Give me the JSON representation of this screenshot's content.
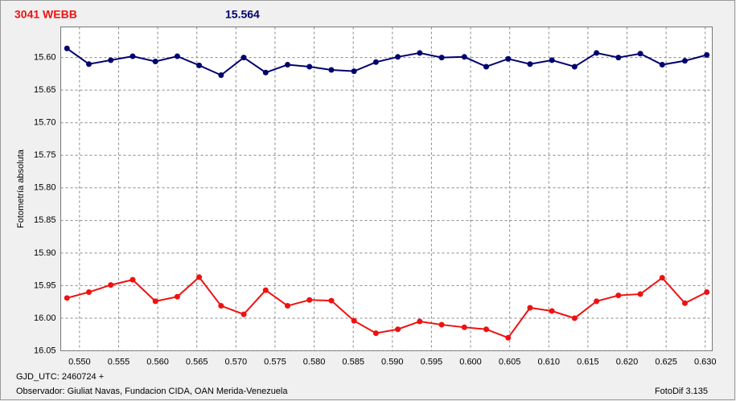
{
  "chart_data": {
    "type": "line",
    "title": "3041 WEBB",
    "subtitle": "15.564",
    "y_label": "Fotometría absoluta",
    "annotations": [
      "GJD_UTC: 2460724 +",
      "Observador: Giuliat Navas, Fundacion CIDA, OAN  Merida-Venezuela",
      "FotoDif 3.135"
    ],
    "x": [
      0.5484,
      0.5512,
      0.554,
      0.5568,
      0.5597,
      0.5625,
      0.5653,
      0.5681,
      0.571,
      0.5738,
      0.5766,
      0.5794,
      0.5822,
      0.5851,
      0.5879,
      0.5907,
      0.5935,
      0.5963,
      0.5992,
      0.602,
      0.6048,
      0.6076,
      0.6104,
      0.6133,
      0.6161,
      0.6189,
      0.6217,
      0.6245,
      0.6274,
      0.6302
    ],
    "series": [
      {
        "color": "#00006e",
        "values": [
          15.586,
          15.61,
          15.604,
          15.598,
          15.606,
          15.598,
          15.612,
          15.627,
          15.6,
          15.623,
          15.611,
          15.614,
          15.619,
          15.621,
          15.607,
          15.599,
          15.593,
          15.6,
          15.599,
          15.614,
          15.602,
          15.61,
          15.604,
          15.614,
          15.593,
          15.6,
          15.594,
          15.611,
          15.605,
          15.596
        ]
      },
      {
        "color": "#ee1111",
        "values": [
          15.969,
          15.96,
          15.949,
          15.941,
          15.974,
          15.967,
          15.937,
          15.981,
          15.994,
          15.957,
          15.981,
          15.972,
          15.973,
          16.004,
          16.023,
          16.017,
          16.005,
          16.01,
          16.014,
          16.017,
          16.03,
          15.984,
          15.989,
          16.0,
          15.974,
          15.965,
          15.963,
          15.938,
          15.977,
          15.96
        ]
      }
    ],
    "xlim": [
      0.5476,
      0.6309
    ],
    "ylim": [
      15.553,
      16.05
    ],
    "y_inverted": true,
    "grid": true,
    "xticks": [
      {
        "value": 0.55,
        "label": "0.550"
      },
      {
        "value": 0.555,
        "label": "0.555"
      },
      {
        "value": 0.56,
        "label": "0.560"
      },
      {
        "value": 0.565,
        "label": "0.565"
      },
      {
        "value": 0.57,
        "label": "0.570"
      },
      {
        "value": 0.575,
        "label": "0.575"
      },
      {
        "value": 0.58,
        "label": "0.580"
      },
      {
        "value": 0.585,
        "label": "0.585"
      },
      {
        "value": 0.59,
        "label": "0.590"
      },
      {
        "value": 0.595,
        "label": "0.595"
      },
      {
        "value": 0.6,
        "label": "0.600"
      },
      {
        "value": 0.605,
        "label": "0.605"
      },
      {
        "value": 0.61,
        "label": "0.610"
      },
      {
        "value": 0.615,
        "label": "0.615"
      },
      {
        "value": 0.62,
        "label": "0.620"
      },
      {
        "value": 0.625,
        "label": "0.625"
      },
      {
        "value": 0.63,
        "label": "0.630"
      }
    ],
    "yticks": [
      {
        "value": 15.6,
        "label": "15.60"
      },
      {
        "value": 15.65,
        "label": "15.65"
      },
      {
        "value": 15.7,
        "label": "15.70"
      },
      {
        "value": 15.75,
        "label": "15.75"
      },
      {
        "value": 15.8,
        "label": "15.80"
      },
      {
        "value": 15.85,
        "label": "15.85"
      },
      {
        "value": 15.9,
        "label": "15.90"
      },
      {
        "value": 15.95,
        "label": "15.95"
      },
      {
        "value": 16.0,
        "label": "16.00"
      },
      {
        "value": 16.05,
        "label": "16.05"
      }
    ]
  }
}
